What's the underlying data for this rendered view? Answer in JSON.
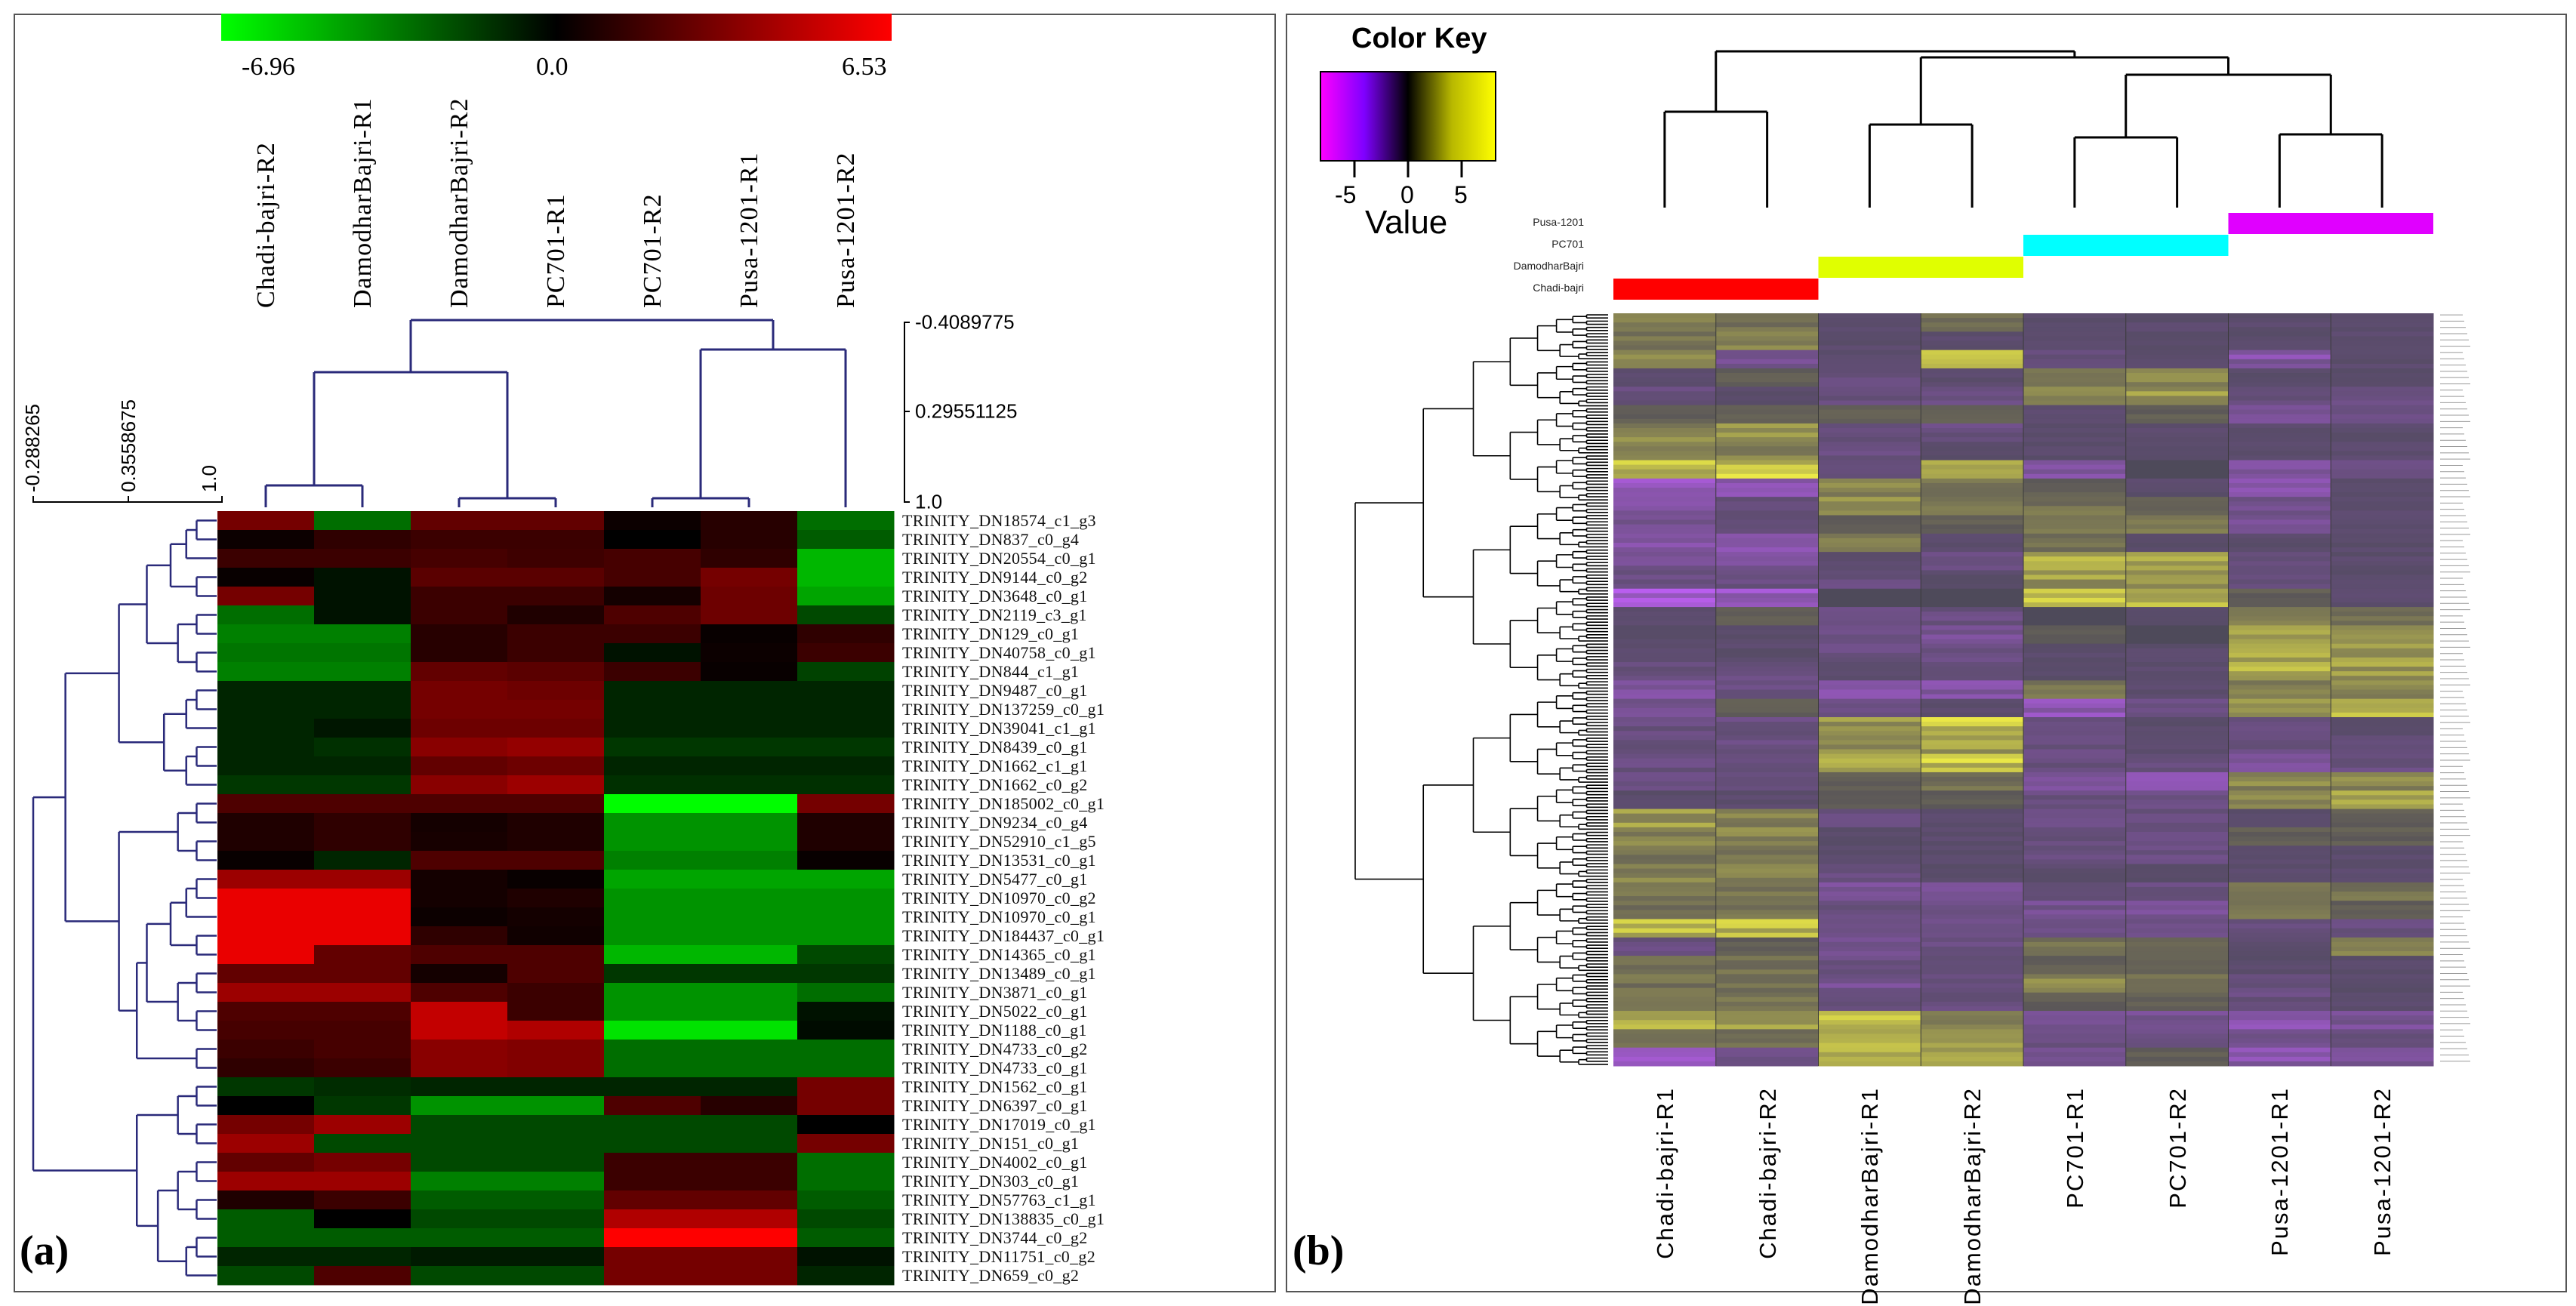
{
  "chart_data": [
    {
      "type": "heatmap",
      "panel_label": "(a)",
      "colorbar": {
        "min": -6.96,
        "max": 6.53,
        "min_label": "-6.96",
        "mid_label": "0.0",
        "max_label": "6.53",
        "colors": {
          "low": "#00ff00",
          "mid": "#000000",
          "high": "#ff0000"
        }
      },
      "column_dendrogram_axis": [
        "-0.4089775",
        "0.29551125",
        "1.0"
      ],
      "row_dendrogram_axis": [
        "-0.288265",
        "0.3558675",
        "1.0"
      ],
      "dendrogram_color": "#2a2a7a",
      "columns": [
        "Chadi-bajri-R2",
        "DamodharBajri-R1",
        "DamodharBajri-R2",
        "PC701-R1",
        "PC701-R2",
        "Pusa-1201-R1",
        "Pusa-1201-R2"
      ],
      "rows": [
        "TRINITY_DN18574_c1_g3",
        "TRINITY_DN837_c0_g4",
        "TRINITY_DN20554_c0_g1",
        "TRINITY_DN9144_c0_g2",
        "TRINITY_DN3648_c0_g1",
        "TRINITY_DN2119_c3_g1",
        "TRINITY_DN129_c0_g1",
        "TRINITY_DN40758_c0_g1",
        "TRINITY_DN844_c1_g1",
        "TRINITY_DN9487_c0_g1",
        "TRINITY_DN137259_c0_g1",
        "TRINITY_DN39041_c1_g1",
        "TRINITY_DN8439_c0_g1",
        "TRINITY_DN1662_c1_g1",
        "TRINITY_DN1662_c0_g2",
        "TRINITY_DN185002_c0_g1",
        "TRINITY_DN9234_c0_g4",
        "TRINITY_DN52910_c1_g5",
        "TRINITY_DN13531_c0_g1",
        "TRINITY_DN5477_c0_g1",
        "TRINITY_DN10970_c0_g2",
        "TRINITY_DN10970_c0_g1",
        "TRINITY_DN184437_c0_g1",
        "TRINITY_DN14365_c0_g1",
        "TRINITY_DN13489_c0_g1",
        "TRINITY_DN3871_c0_g1",
        "TRINITY_DN5022_c0_g1",
        "TRINITY_DN1188_c0_g1",
        "TRINITY_DN4733_c0_g2",
        "TRINITY_DN4733_c0_g1",
        "TRINITY_DN1562_c0_g1",
        "TRINITY_DN6397_c0_g1",
        "TRINITY_DN17019_c0_g1",
        "TRINITY_DN151_c0_g1",
        "TRINITY_DN4002_c0_g1",
        "TRINITY_DN303_c0_g1",
        "TRINITY_DN57763_c1_g1",
        "TRINITY_DN138835_c0_g1",
        "TRINITY_DN3744_c0_g2",
        "TRINITY_DN11751_c0_g2",
        "TRINITY_DN659_c0_g2"
      ],
      "values": [
        [
          3,
          -3,
          2.5,
          2.5,
          0.3,
          1,
          -3
        ],
        [
          0.3,
          1.2,
          1.5,
          1.5,
          0,
          1,
          -2.5
        ],
        [
          1.5,
          1.5,
          1.8,
          1.6,
          1.8,
          1.2,
          -5
        ],
        [
          0.2,
          -0.5,
          2.3,
          2.3,
          1.8,
          3,
          -5
        ],
        [
          3,
          -0.5,
          1.5,
          1.5,
          0.5,
          2.8,
          -4.5
        ],
        [
          -3,
          -0.5,
          1.5,
          0.8,
          2,
          2.8,
          -2
        ],
        [
          -3.5,
          -3.5,
          1,
          1.5,
          1.5,
          0.2,
          1.2
        ],
        [
          -3.2,
          -3.2,
          1,
          1.5,
          -0.5,
          0.3,
          1.5
        ],
        [
          -3.5,
          -3.5,
          2.5,
          2.3,
          1.5,
          0.2,
          -1.8
        ],
        [
          -1,
          -1,
          3,
          2.8,
          -1,
          -1,
          -1
        ],
        [
          -1,
          -1,
          3,
          3,
          -1,
          -1,
          -1
        ],
        [
          -1,
          -0.6,
          2.8,
          2.8,
          -1,
          -1,
          -1
        ],
        [
          -1,
          -1.3,
          3.5,
          3.8,
          -1.5,
          -1.5,
          -1.5
        ],
        [
          -1,
          -1,
          2.5,
          2.8,
          -1,
          -1,
          -1
        ],
        [
          -1.5,
          -1.5,
          3.5,
          4,
          -1.3,
          -1.3,
          -1.3
        ],
        [
          2,
          2,
          2,
          2,
          -6.9,
          -6.9,
          3
        ],
        [
          0.8,
          1.2,
          0.5,
          0.8,
          -4,
          -4,
          0.8
        ],
        [
          0.8,
          1.2,
          0.6,
          0.8,
          -4,
          -4,
          0.8
        ],
        [
          0.2,
          -1,
          2,
          2,
          -3.5,
          -3.5,
          0.2
        ],
        [
          4,
          4,
          0.5,
          0.2,
          -4.5,
          -4.5,
          -4.5
        ],
        [
          6,
          6,
          0.5,
          0.8,
          -4,
          -4,
          -4
        ],
        [
          6,
          6,
          0.3,
          0.5,
          -4,
          -4,
          -4
        ],
        [
          6,
          6,
          1.2,
          0.4,
          -4,
          -4,
          -4
        ],
        [
          6,
          2.5,
          2,
          2,
          -5,
          -5,
          -2
        ],
        [
          2.5,
          2.5,
          0.5,
          2,
          -1.5,
          -1.5,
          -1.5
        ],
        [
          4,
          4,
          2,
          1.5,
          -4,
          -4,
          -3
        ],
        [
          2,
          2,
          5,
          1.5,
          -4,
          -4,
          -0.5
        ],
        [
          1.8,
          1.8,
          5,
          4.5,
          -6.2,
          -6.2,
          -0.3
        ],
        [
          1.5,
          1.8,
          3.5,
          3.3,
          -3,
          -3,
          -3
        ],
        [
          1.2,
          1.5,
          3.5,
          3.3,
          -3,
          -3,
          -3
        ],
        [
          -1.5,
          -1.2,
          -1,
          -1,
          -1,
          -1,
          3
        ],
        [
          0,
          -1.5,
          -4,
          -4,
          2,
          1,
          3
        ],
        [
          3,
          4,
          -2,
          -2,
          -2,
          -2,
          0
        ],
        [
          4,
          -2,
          -2,
          -2,
          -2,
          -2,
          3
        ],
        [
          2.5,
          3,
          -2,
          -2,
          1.5,
          1.5,
          -3
        ],
        [
          4,
          4,
          -3.5,
          -3.5,
          1.5,
          1.5,
          -3
        ],
        [
          0.8,
          1.5,
          -2.5,
          -2.5,
          2.5,
          2.5,
          -2.5
        ],
        [
          -2.5,
          0,
          -2,
          -2,
          4.5,
          4.5,
          -2
        ],
        [
          -2.5,
          -2.5,
          -2.5,
          -2.5,
          6.5,
          6.5,
          -2.5
        ],
        [
          -1,
          -1,
          -0.7,
          -0.7,
          3,
          3,
          -0.5
        ],
        [
          -2,
          2,
          -2,
          -2,
          3,
          3,
          -1
        ]
      ]
    },
    {
      "type": "heatmap",
      "panel_label": "(b)",
      "color_key": {
        "title": "Color Key",
        "xlabel": "Value",
        "ticks": [
          "-5",
          "0",
          "5"
        ],
        "range": [
          -8.2,
          8.2
        ],
        "colors": {
          "low": "#ff00ff",
          "lowmid": "#7f00ff",
          "mid": "#000000",
          "high": "#ffff00"
        }
      },
      "groups": [
        {
          "name": "Pusa-1201",
          "color": "#e000ff"
        },
        {
          "name": "PC701",
          "color": "#00ffff"
        },
        {
          "name": "DamodharBajri",
          "color": "#e0ff00"
        },
        {
          "name": "Chadi-bajri",
          "color": "#ff0000"
        }
      ],
      "columns": [
        "Chadi-bajri-R1",
        "Chadi-bajri-R2",
        "DamodharBajri-R1",
        "DamodharBajri-R2",
        "PC701-R1",
        "PC701-R2",
        "Pusa-1201-R1",
        "Pusa-1201-R2"
      ],
      "values": [
        [
          3,
          2,
          -1,
          2,
          -1,
          -1,
          -1,
          -1
        ],
        [
          2,
          3,
          -1,
          -1,
          -1,
          -1,
          -1,
          -1
        ],
        [
          3,
          -3,
          -1,
          5,
          -2,
          -1,
          -4,
          -1
        ],
        [
          -1,
          1,
          -2,
          -1,
          3,
          3,
          -1,
          -1
        ],
        [
          -2,
          -1,
          -2,
          -2,
          3,
          4,
          -2,
          -2
        ],
        [
          1,
          1,
          1,
          1,
          -1,
          1,
          -3,
          -2
        ],
        [
          3,
          4,
          -2,
          -2,
          -1,
          -1,
          -1,
          -1
        ],
        [
          3,
          3,
          -2,
          -1,
          -1,
          -1,
          -1,
          -1
        ],
        [
          6,
          6,
          -2,
          4,
          -4,
          0,
          -4,
          -2
        ],
        [
          -6,
          -4,
          3,
          2,
          1,
          -1,
          -5,
          -1
        ],
        [
          -4,
          -2,
          4,
          2,
          2,
          1,
          -3,
          -1
        ],
        [
          -3,
          -2,
          1,
          1,
          3,
          3,
          -3,
          -1
        ],
        [
          -4,
          -4,
          3,
          -1,
          2,
          -1,
          -1,
          -1
        ],
        [
          -3,
          -3,
          -1,
          -2,
          5,
          5,
          -2,
          -1
        ],
        [
          -2,
          -2,
          -2,
          -1,
          4,
          4,
          -2,
          -1
        ],
        [
          -6,
          -6,
          0,
          0,
          6,
          5,
          1,
          -1
        ],
        [
          -1,
          1,
          -2,
          -2,
          0,
          -1,
          3,
          2
        ],
        [
          -1,
          -1,
          -2,
          -3,
          1,
          0,
          4,
          3
        ],
        [
          -1,
          -1,
          -2,
          -2,
          -1,
          -1,
          5,
          4
        ],
        [
          -2,
          -2,
          -1,
          -2,
          -1,
          -1,
          5,
          4
        ],
        [
          -4,
          -2,
          -4,
          -4,
          2,
          -1,
          3,
          3
        ],
        [
          -3,
          1,
          -2,
          -1,
          -5,
          -2,
          4,
          5
        ],
        [
          -2,
          -2,
          4,
          6,
          -2,
          -1,
          -2,
          -1
        ],
        [
          -2,
          -2,
          3,
          4,
          -2,
          -1,
          -2,
          -2
        ],
        [
          -2,
          -2,
          5,
          6,
          -2,
          -2,
          -3,
          -2
        ],
        [
          -2,
          -2,
          1,
          2,
          -3,
          -4,
          3,
          3
        ],
        [
          -1,
          -1,
          1,
          1,
          -2,
          -2,
          3,
          4
        ],
        [
          4,
          3,
          -2,
          -1,
          -2,
          -2,
          -1,
          1
        ],
        [
          3,
          3,
          -1,
          -1,
          -2,
          -2,
          1,
          1
        ],
        [
          2,
          2,
          -1,
          -1,
          -2,
          -2,
          -1,
          -1
        ],
        [
          3,
          3,
          -2,
          -1,
          -1,
          -1,
          -1,
          -1
        ],
        [
          2,
          2,
          -3,
          -3,
          -2,
          -2,
          2,
          2
        ],
        [
          2,
          2,
          -2,
          -2,
          -3,
          -3,
          2,
          1
        ],
        [
          6,
          6,
          -3,
          -2,
          -2,
          -2,
          -2,
          -2
        ],
        [
          -2,
          1,
          -3,
          -2,
          2,
          2,
          -1,
          3
        ],
        [
          2,
          2,
          -2,
          -2,
          1,
          1,
          -1,
          -1
        ],
        [
          2,
          2,
          -3,
          -2,
          3,
          2,
          -2,
          -1
        ],
        [
          2,
          2,
          -2,
          -2,
          1,
          1,
          -2,
          -1
        ],
        [
          6,
          4,
          6,
          3,
          -3,
          -3,
          -4,
          -3
        ],
        [
          2,
          2,
          5,
          5,
          -2,
          -2,
          -3,
          -2
        ],
        [
          -6,
          -2,
          5,
          5,
          -3,
          1,
          -4,
          -3
        ]
      ]
    }
  ]
}
